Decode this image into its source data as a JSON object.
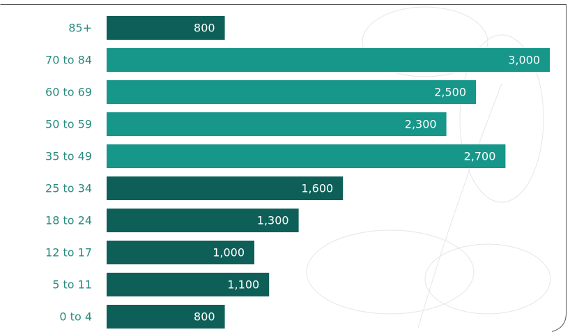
{
  "chart_data": {
    "type": "bar",
    "categories": [
      "85+",
      "70 to 84",
      "60 to 69",
      "50 to 59",
      "35 to 49",
      "25 to 34",
      "18 to 24",
      "12 to 17",
      "5 to 11",
      "0 to 4"
    ],
    "values": [
      800,
      3000,
      2500,
      2300,
      2700,
      1600,
      1300,
      1000,
      1100,
      800
    ],
    "value_labels": [
      "800",
      "3,000",
      "2,500",
      "2,300",
      "2,700",
      "1,600",
      "1,300",
      "1,000",
      "1,100",
      "800"
    ],
    "colors": [
      "#0e5f58",
      "#17968a",
      "#17968a",
      "#17968a",
      "#17968a",
      "#0e5f58",
      "#0e5f58",
      "#0e5f58",
      "#0e5f58",
      "#0e5f58"
    ]
  }
}
